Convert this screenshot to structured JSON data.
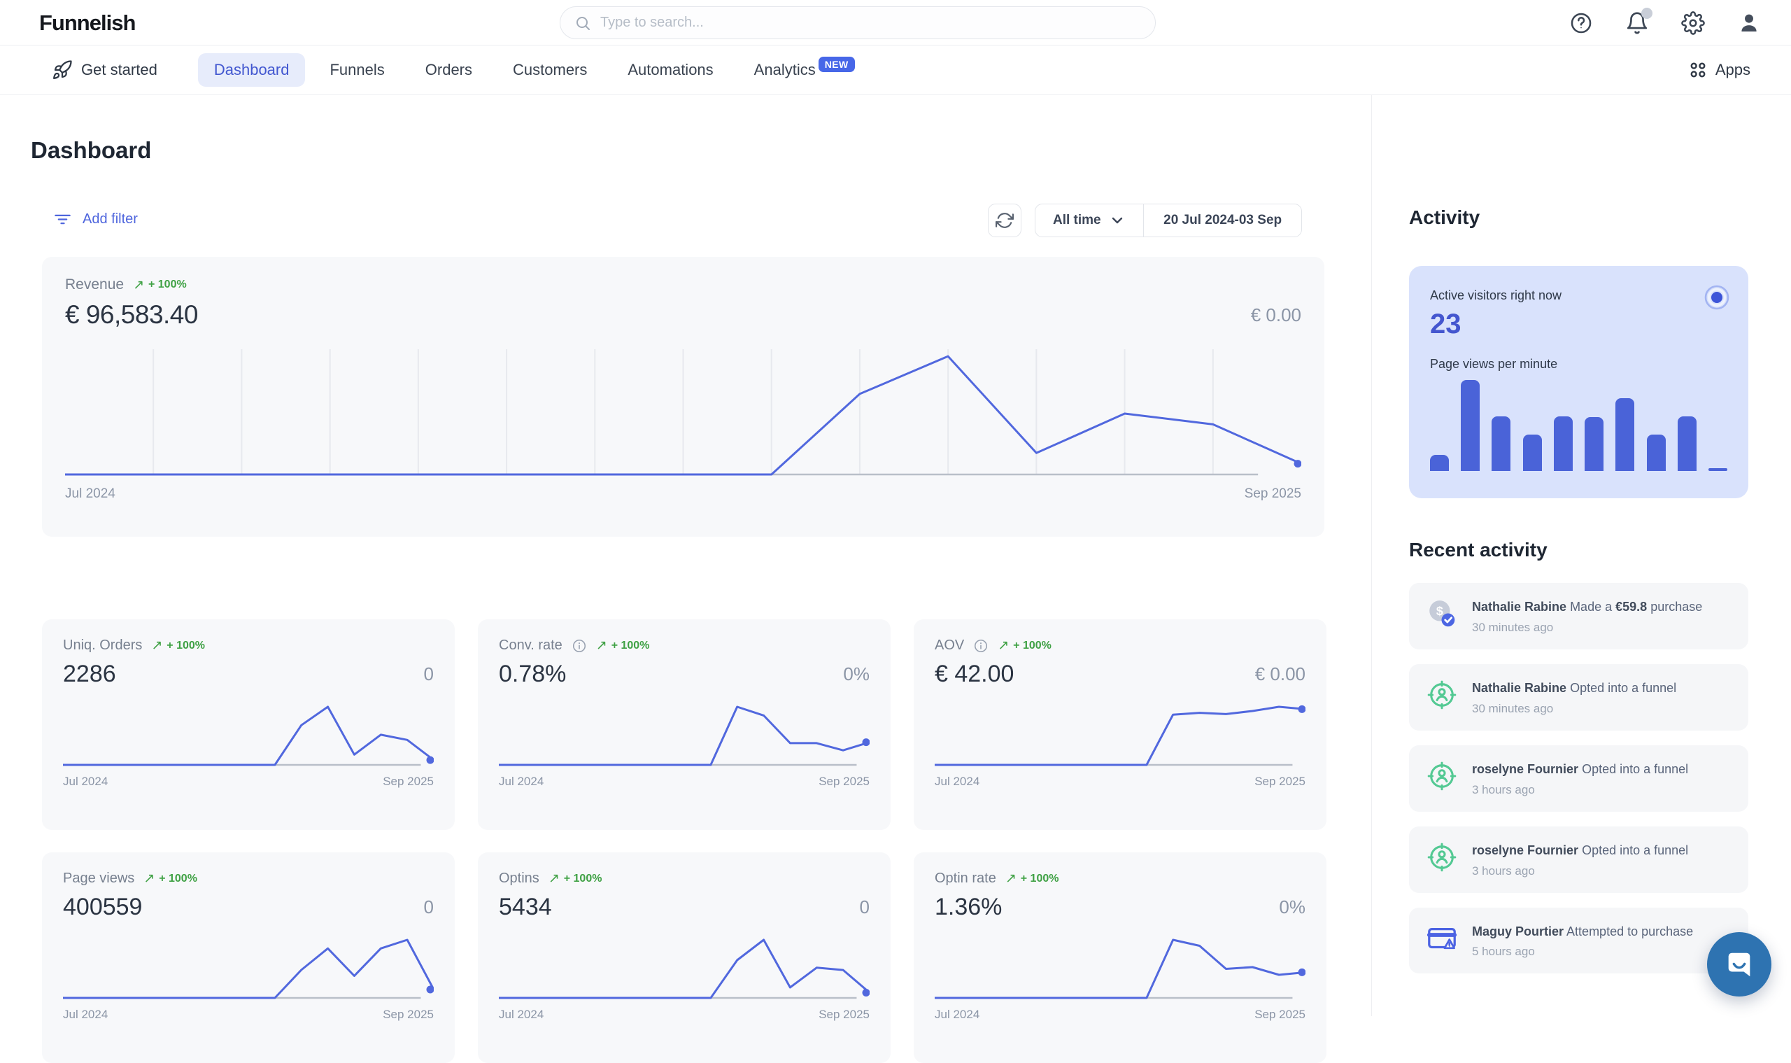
{
  "header": {
    "logo": "Funnelish",
    "search_placeholder": "Type to search..."
  },
  "nav": {
    "get_started": "Get started",
    "items": [
      "Dashboard",
      "Funnels",
      "Orders",
      "Customers",
      "Automations",
      "Analytics"
    ],
    "new_badge": "NEW",
    "apps": "Apps"
  },
  "page_title": "Dashboard",
  "filters": {
    "add_filter": "Add filter",
    "range_preset": "All time",
    "date_range": "20 Jul 2024-03 Sep"
  },
  "icons": {
    "trend_up": "↗"
  },
  "revenue_card": {
    "label": "Revenue",
    "change": "+ 100%",
    "value": "€ 96,583.40",
    "comparison": "€ 0.00",
    "x_left": "Jul 2024",
    "x_right": "Sep 2025"
  },
  "metric_cards": [
    {
      "label": "Uniq. Orders",
      "change": "+ 100%",
      "value": "2286",
      "comparison": "0",
      "x_left": "Jul 2024",
      "x_right": "Sep 2025"
    },
    {
      "label": "Conv. rate",
      "change": "+ 100%",
      "value": "0.78%",
      "comparison": "0%",
      "x_left": "Jul 2024",
      "x_right": "Sep 2025"
    },
    {
      "label": "AOV",
      "change": "+ 100%",
      "value": "€ 42.00",
      "comparison": "€ 0.00",
      "x_left": "Jul 2024",
      "x_right": "Sep 2025"
    },
    {
      "label": "Page views",
      "change": "+ 100%",
      "value": "400559",
      "comparison": "0",
      "x_left": "Jul 2024",
      "x_right": "Sep 2025"
    },
    {
      "label": "Optins",
      "change": "+ 100%",
      "value": "5434",
      "comparison": "0",
      "x_left": "Jul 2024",
      "x_right": "Sep 2025"
    },
    {
      "label": "Optin rate",
      "change": "+ 100%",
      "value": "1.36%",
      "comparison": "0%",
      "x_left": "Jul 2024",
      "x_right": "Sep 2025"
    }
  ],
  "activity": {
    "title": "Activity",
    "active_visitors_label": "Active visitors right now",
    "active_visitors": "23",
    "pvpm_label": "Page views per minute",
    "recent_title": "Recent activity",
    "items": [
      {
        "name": "Nathalie Rabine",
        "pre": "Made a",
        "amount": "€59.8",
        "post": "purchase",
        "time": "30 minutes ago"
      },
      {
        "name": "Nathalie Rabine",
        "pre": "Opted into a funnel",
        "amount": "",
        "post": "",
        "time": "30 minutes ago"
      },
      {
        "name": "roselyne Fournier",
        "pre": "Opted into a funnel",
        "amount": "",
        "post": "",
        "time": "3 hours ago"
      },
      {
        "name": "roselyne Fournier",
        "pre": "Opted into a funnel",
        "amount": "",
        "post": "",
        "time": "3 hours ago"
      },
      {
        "name": "Maguy Pourtier",
        "pre": "Attempted to purchase",
        "amount": "",
        "post": "",
        "time": "5 hours ago"
      }
    ]
  },
  "colors": {
    "accent": "#4767e8",
    "green": "#3fa144",
    "chart_line": "#5168de",
    "activity_card_bg": "#d9e2fc",
    "chat_bg": "#2e73b1"
  },
  "chart_data": [
    {
      "id": "revenue",
      "type": "line",
      "grid": true,
      "title": "Revenue (Jul 2024 - Sep 2025, monthly)",
      "x": [
        "Jul 2024",
        "Aug 2024",
        "Sep 2024",
        "Oct 2024",
        "Nov 2024",
        "Dec 2024",
        "Jan 2025",
        "Feb 2025",
        "Mar 2025",
        "Apr 2025",
        "May 2025",
        "Jun 2025",
        "Jul 2025",
        "Aug 2025",
        "Sep 2025"
      ],
      "series": [
        {
          "name": "current",
          "values": [
            0,
            0,
            0,
            0,
            0,
            0,
            0,
            0,
            0,
            22500,
            33000,
            6000,
            17000,
            14000,
            3000
          ]
        },
        {
          "name": "previous",
          "values": [
            0,
            0,
            0,
            0,
            0,
            0,
            0,
            0,
            0,
            0,
            0,
            0,
            0,
            0,
            0
          ]
        }
      ],
      "xlabel_left": "Jul 2024",
      "xlabel_right": "Sep 2025"
    },
    {
      "id": "uniq_orders",
      "type": "line",
      "grid": false,
      "x": [
        "Jul 2024",
        "Aug 2024",
        "Sep 2024",
        "Oct 2024",
        "Nov 2024",
        "Dec 2024",
        "Jan 2025",
        "Feb 2025",
        "Mar 2025",
        "Apr 2025",
        "May 2025",
        "Jun 2025",
        "Jul 2025",
        "Aug 2025",
        "Sep 2025"
      ],
      "series": [
        {
          "name": "current",
          "values": [
            0,
            0,
            0,
            0,
            0,
            0,
            0,
            0,
            0,
            540,
            790,
            140,
            410,
            340,
            66
          ]
        }
      ]
    },
    {
      "id": "conv_rate",
      "type": "line",
      "grid": false,
      "x": [
        "Jul 2024",
        "Aug 2024",
        "Sep 2024",
        "Oct 2024",
        "Nov 2024",
        "Dec 2024",
        "Jan 2025",
        "Feb 2025",
        "Mar 2025",
        "Apr 2025",
        "May 2025",
        "Jun 2025",
        "Jul 2025",
        "Aug 2025",
        "Sep 2025"
      ],
      "series": [
        {
          "name": "current",
          "values": [
            0,
            0,
            0,
            0,
            0,
            0,
            0,
            0,
            0,
            2.0,
            1.7,
            0.75,
            0.75,
            0.5,
            0.78
          ]
        }
      ]
    },
    {
      "id": "aov",
      "type": "line",
      "grid": false,
      "x": [
        "Jul 2024",
        "Aug 2024",
        "Sep 2024",
        "Oct 2024",
        "Nov 2024",
        "Dec 2024",
        "Jan 2025",
        "Feb 2025",
        "Mar 2025",
        "Apr 2025",
        "May 2025",
        "Jun 2025",
        "Jul 2025",
        "Aug 2025",
        "Sep 2025"
      ],
      "series": [
        {
          "name": "current",
          "values": [
            0,
            0,
            0,
            0,
            0,
            0,
            0,
            0,
            0,
            41.5,
            43,
            42,
            44.5,
            48,
            46
          ]
        }
      ]
    },
    {
      "id": "page_views",
      "type": "line",
      "grid": false,
      "x": [
        "Jul 2024",
        "Aug 2024",
        "Sep 2024",
        "Oct 2024",
        "Nov 2024",
        "Dec 2024",
        "Jan 2025",
        "Feb 2025",
        "Mar 2025",
        "Apr 2025",
        "May 2025",
        "Jun 2025",
        "Jul 2025",
        "Aug 2025",
        "Sep 2025"
      ],
      "series": [
        {
          "name": "current",
          "values": [
            0,
            0,
            0,
            0,
            0,
            0,
            0,
            0,
            0,
            52000,
            92000,
            41000,
            92000,
            108000,
            15559
          ]
        }
      ]
    },
    {
      "id": "optins",
      "type": "line",
      "grid": false,
      "x": [
        "Jul 2024",
        "Aug 2024",
        "Sep 2024",
        "Oct 2024",
        "Nov 2024",
        "Dec 2024",
        "Jan 2025",
        "Feb 2025",
        "Mar 2025",
        "Apr 2025",
        "May 2025",
        "Jun 2025",
        "Jul 2025",
        "Aug 2025",
        "Sep 2025"
      ],
      "series": [
        {
          "name": "current",
          "values": [
            0,
            0,
            0,
            0,
            0,
            0,
            0,
            0,
            0,
            1210,
            1860,
            335,
            967,
            893,
            169
          ]
        }
      ]
    },
    {
      "id": "optin_rate",
      "type": "line",
      "grid": false,
      "x": [
        "Jul 2024",
        "Aug 2024",
        "Sep 2024",
        "Oct 2024",
        "Nov 2024",
        "Dec 2024",
        "Jan 2025",
        "Feb 2025",
        "Mar 2025",
        "Apr 2025",
        "May 2025",
        "Jun 2025",
        "Jul 2025",
        "Aug 2025",
        "Sep 2025"
      ],
      "series": [
        {
          "name": "current",
          "values": [
            0,
            0,
            0,
            0,
            0,
            0,
            0,
            0,
            0,
            3.4,
            3.05,
            1.7,
            1.8,
            1.35,
            1.5
          ]
        }
      ]
    },
    {
      "id": "visitors_bars",
      "type": "bar",
      "title": "Page views per minute",
      "values": [
        18,
        100,
        60,
        40,
        60,
        59,
        80,
        40,
        60,
        3
      ]
    }
  ]
}
